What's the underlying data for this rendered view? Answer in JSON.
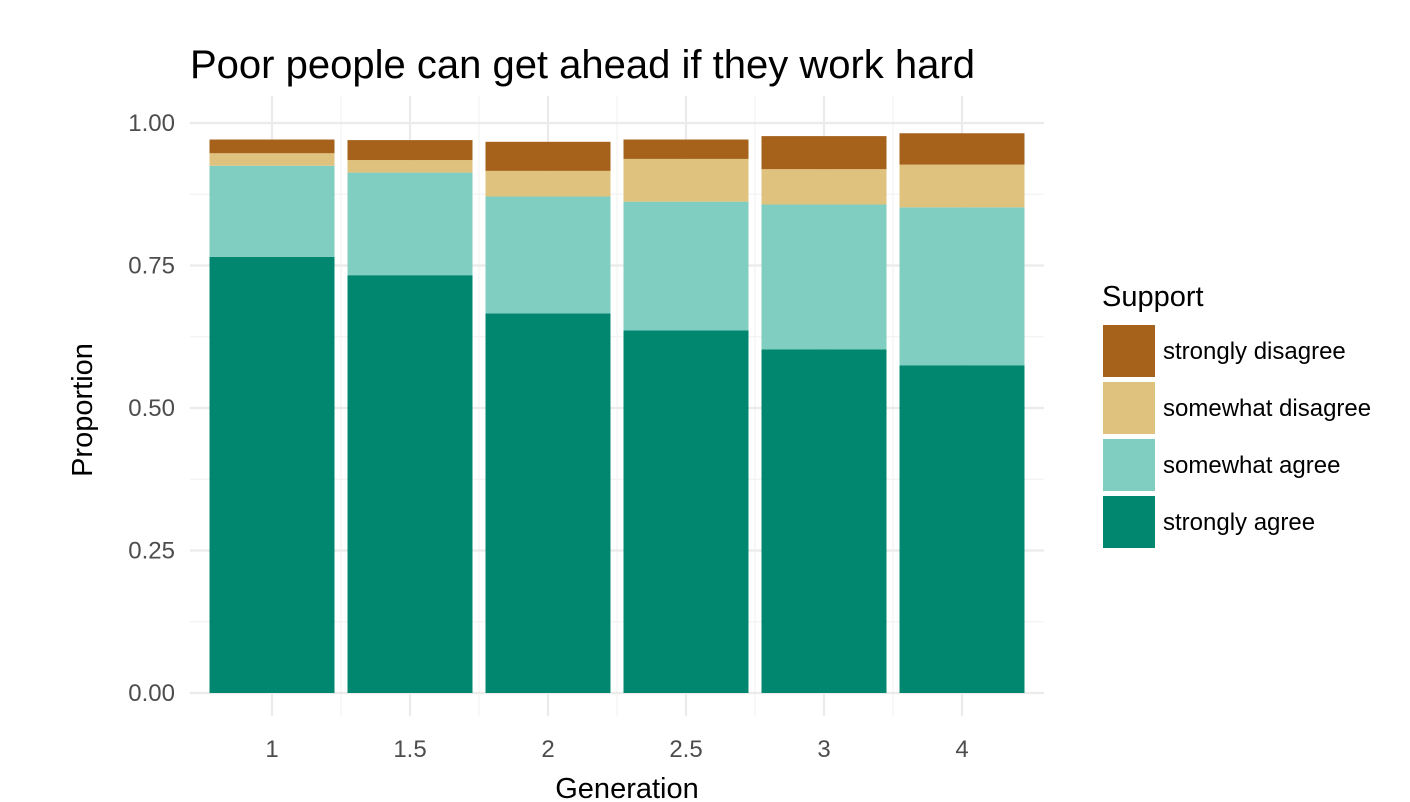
{
  "chart_data": {
    "type": "bar",
    "stacked": true,
    "title": "Poor people can get ahead if they work hard",
    "xlabel": "Generation",
    "ylabel": "Proportion",
    "categories": [
      "1",
      "1.5",
      "2",
      "2.5",
      "3",
      "4"
    ],
    "ylim": [
      0,
      1
    ],
    "yticks": [
      "0.00",
      "0.25",
      "0.50",
      "0.75",
      "1.00"
    ],
    "grid": true,
    "legend": {
      "title": "Support",
      "position": "right"
    },
    "series": [
      {
        "name": "strongly agree",
        "color": "#01876f",
        "values": [
          0.765,
          0.733,
          0.666,
          0.636,
          0.603,
          0.575
        ]
      },
      {
        "name": "somewhat agree",
        "color": "#80cdc1",
        "values": [
          0.16,
          0.18,
          0.205,
          0.226,
          0.254,
          0.277
        ]
      },
      {
        "name": "somewhat disagree",
        "color": "#dfc27d",
        "values": [
          0.022,
          0.022,
          0.045,
          0.075,
          0.062,
          0.075
        ]
      },
      {
        "name": "strongly disagree",
        "color": "#a6611a",
        "values": [
          0.024,
          0.035,
          0.051,
          0.034,
          0.058,
          0.055
        ]
      }
    ]
  }
}
